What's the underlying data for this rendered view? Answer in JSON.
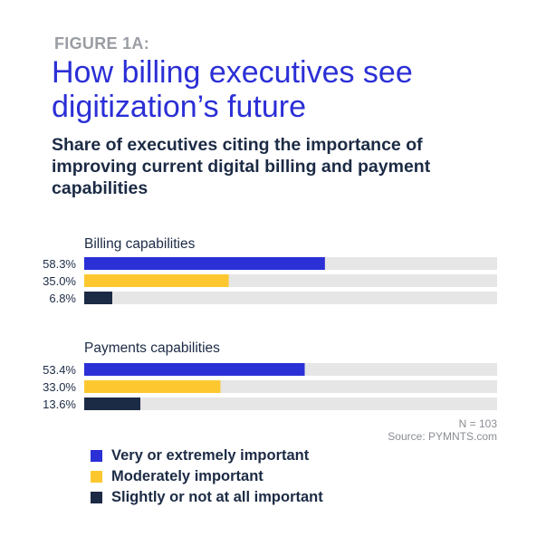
{
  "header": {
    "figure_label": "FIGURE 1A:",
    "title": "How billing executives see digitization’s future",
    "subtitle": "Share of executives citing the importance of improving current digital billing and payment capabilities"
  },
  "chart_data": {
    "type": "bar",
    "orientation": "horizontal",
    "unit": "%",
    "xlim": [
      0,
      100
    ],
    "groups": [
      {
        "label": "Billing capabilities",
        "values": [
          58.3,
          35.0,
          6.8
        ],
        "value_labels": [
          "58.3%",
          "35.0%",
          "6.8%"
        ]
      },
      {
        "label": "Payments capabilities",
        "values": [
          53.4,
          33.0,
          13.6
        ],
        "value_labels": [
          "53.4%",
          "33.0%",
          "13.6%"
        ]
      }
    ],
    "series": [
      {
        "name": "Very or extremely important",
        "color": "#2b2fd6"
      },
      {
        "name": "Moderately important",
        "color": "#fdc82f"
      },
      {
        "name": "Slightly or not at all important",
        "color": "#1c2b45"
      }
    ],
    "track_color": "#e6e6e6",
    "note": "N = 103",
    "source": "Source: PYMNTS.com",
    "legend_position": "bottom-left"
  }
}
